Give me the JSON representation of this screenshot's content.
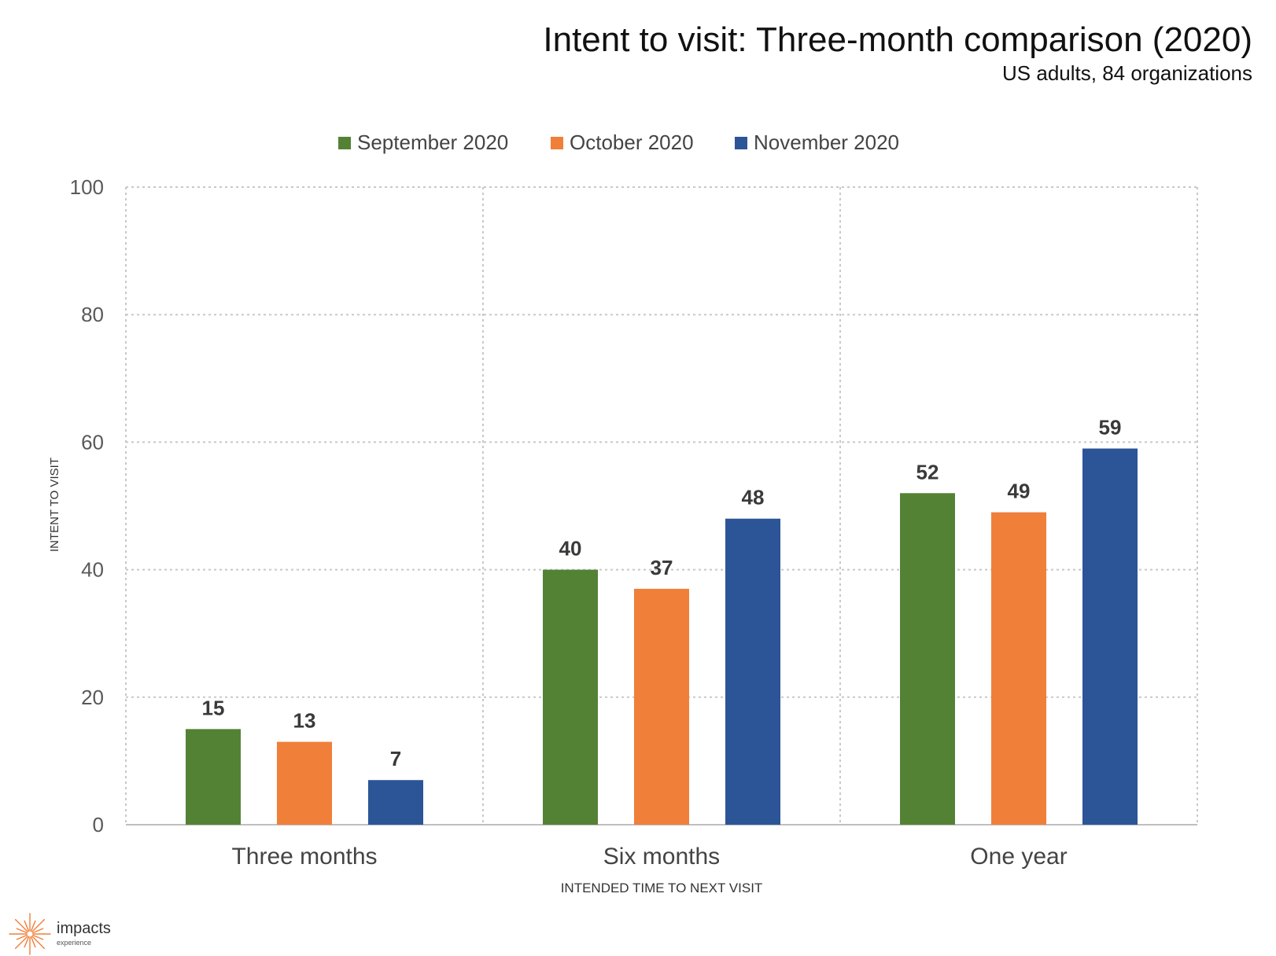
{
  "header": {
    "title": "Intent to visit: Three-month comparison (2020)",
    "subtitle": "US adults, 84 organizations"
  },
  "logo": {
    "name": "impacts",
    "tagline": "experience",
    "icon": "starburst-icon",
    "color": "#F07F3A"
  },
  "chart_data": {
    "type": "bar",
    "categories": [
      "Three months",
      "Six months",
      "One year"
    ],
    "series": [
      {
        "name": "September 2020",
        "color": "#548235",
        "values": [
          15,
          40,
          52
        ]
      },
      {
        "name": "October 2020",
        "color": "#F07F3A",
        "values": [
          13,
          37,
          49
        ]
      },
      {
        "name": "November 2020",
        "color": "#2C5597",
        "values": [
          7,
          48,
          59
        ]
      }
    ],
    "xlabel": "INTENDED TIME TO NEXT VISIT",
    "ylabel": "INTENT TO VISIT",
    "ylim": [
      0,
      100
    ],
    "yticks": [
      0,
      20,
      40,
      60,
      80,
      100
    ],
    "grid": true,
    "legend": "top-center",
    "data_labels": true
  }
}
